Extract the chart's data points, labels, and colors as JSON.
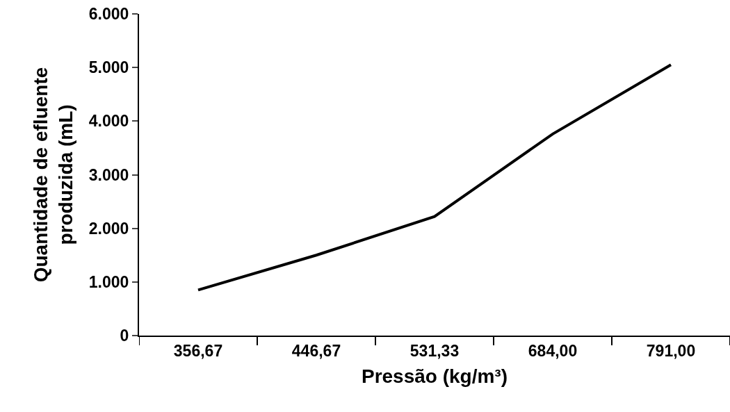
{
  "chart_data": {
    "type": "line",
    "xlabel": "Pressão (kg/m³)",
    "ylabel": "Quantidade de efluente produzida (mL)",
    "categories": [
      "356,67",
      "446,67",
      "531,33",
      "684,00",
      "791,00"
    ],
    "series": [
      {
        "color": "#000000",
        "values": [
          850,
          1500,
          2220,
          3760,
          5050
        ]
      }
    ],
    "ylim": [
      0,
      6000
    ],
    "yticks": [
      {
        "value": 0,
        "label": "0"
      },
      {
        "value": 1000,
        "label": "1.000"
      },
      {
        "value": 2000,
        "label": "2.000"
      },
      {
        "value": 3000,
        "label": "3.000"
      },
      {
        "value": 4000,
        "label": "4.000"
      },
      {
        "value": 5000,
        "label": "5.000"
      },
      {
        "value": 6000,
        "label": "6.000"
      }
    ],
    "marker": "none",
    "line_style": "solid"
  }
}
